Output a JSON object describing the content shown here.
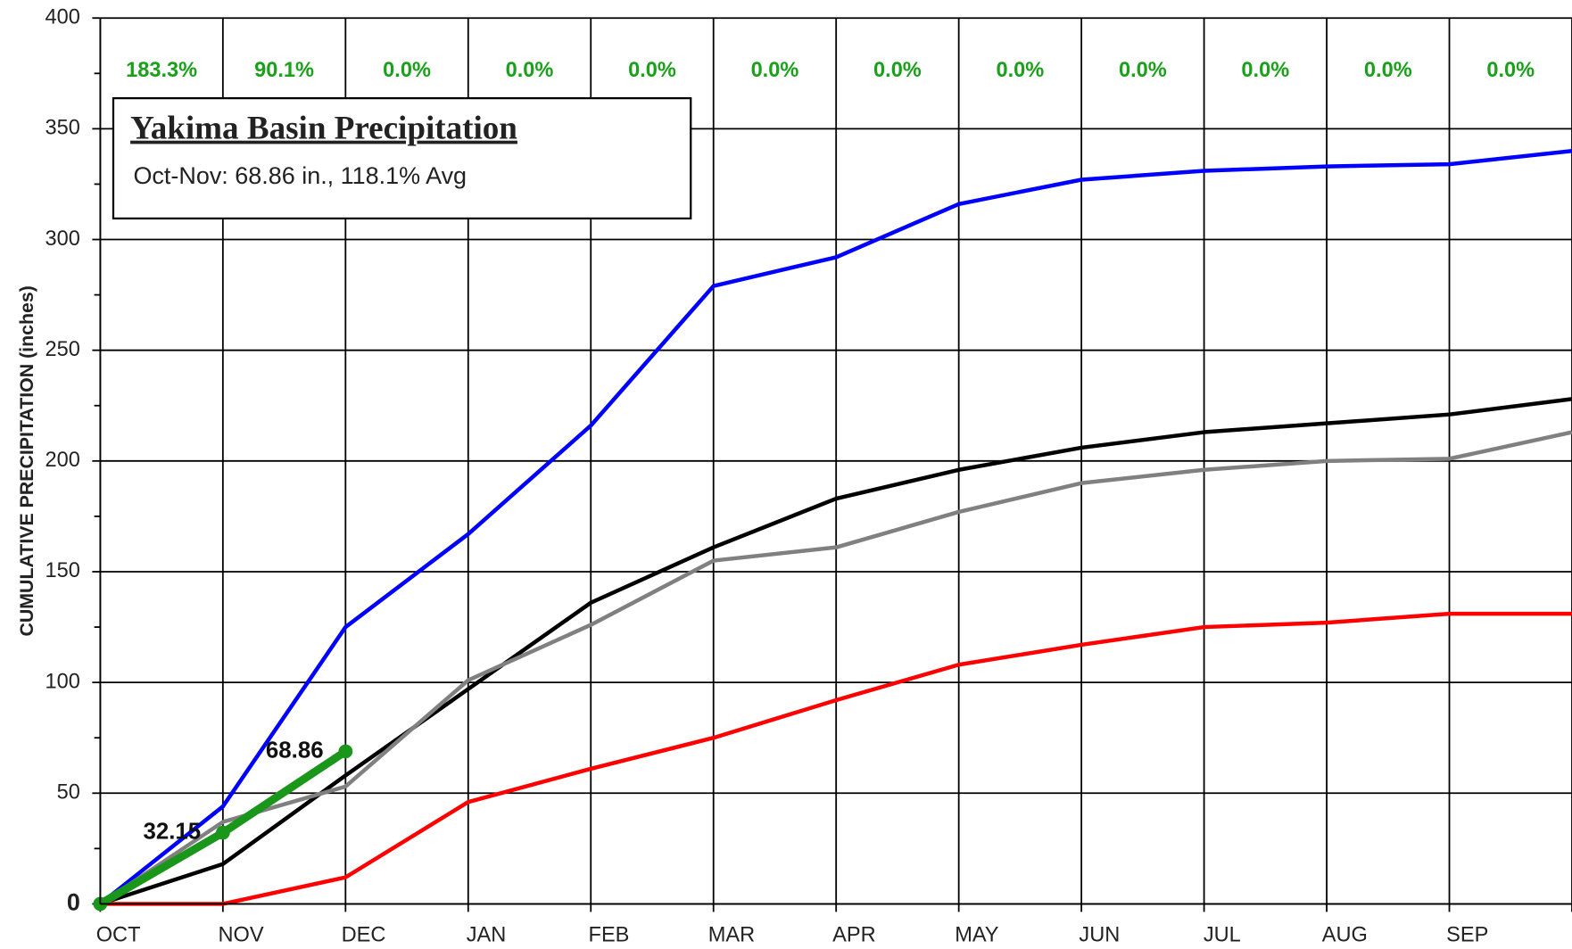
{
  "chart_data": {
    "type": "line",
    "y_label": "CUMULATIVE PRECIPITATION (inches)",
    "box_title": "Yakima Basin Precipitation",
    "box_subtitle": "Oct-Nov: 68.86 in., 118.1% Avg",
    "categories": [
      "OCT",
      "NOV",
      "DEC",
      "JAN",
      "FEB",
      "MAR",
      "APR",
      "MAY",
      "JUN",
      "JUL",
      "AUG",
      "SEP",
      null
    ],
    "percent_labels": [
      "183.3%",
      "90.1%",
      "0.0%",
      "0.0%",
      "0.0%",
      "0.0%",
      "0.0%",
      "0.0%",
      "0.0%",
      "0.0%",
      "0.0%",
      "0.0%"
    ],
    "series": [
      {
        "color": "#0000ff",
        "values": [
          0,
          44,
          125,
          167,
          216,
          279,
          292,
          316,
          327,
          331,
          333,
          334,
          340
        ]
      },
      {
        "color": "#000000",
        "values": [
          0,
          18,
          58,
          97,
          136,
          161,
          183,
          196,
          206,
          213,
          217,
          221,
          228
        ]
      },
      {
        "color": "#808080",
        "values": [
          0,
          37,
          53,
          101,
          126,
          155,
          161,
          177,
          190,
          196,
          200,
          201,
          213
        ]
      },
      {
        "color": "#ff0000",
        "values": [
          0,
          0,
          12,
          46,
          61,
          75,
          92,
          108,
          117,
          125,
          127,
          131,
          131
        ]
      },
      {
        "color": "#1a961a",
        "values": [
          0,
          32.15,
          68.86,
          null,
          null,
          null,
          null,
          null,
          null,
          null,
          null,
          null,
          null
        ],
        "value_labels": [
          null,
          "32.15",
          "68.86",
          null,
          null,
          null,
          null,
          null,
          null,
          null,
          null,
          null,
          null
        ]
      }
    ],
    "ylim": [
      0,
      400
    ],
    "yticks": [
      0,
      50,
      100,
      150,
      200,
      250,
      300,
      350,
      400
    ],
    "grid": true
  }
}
